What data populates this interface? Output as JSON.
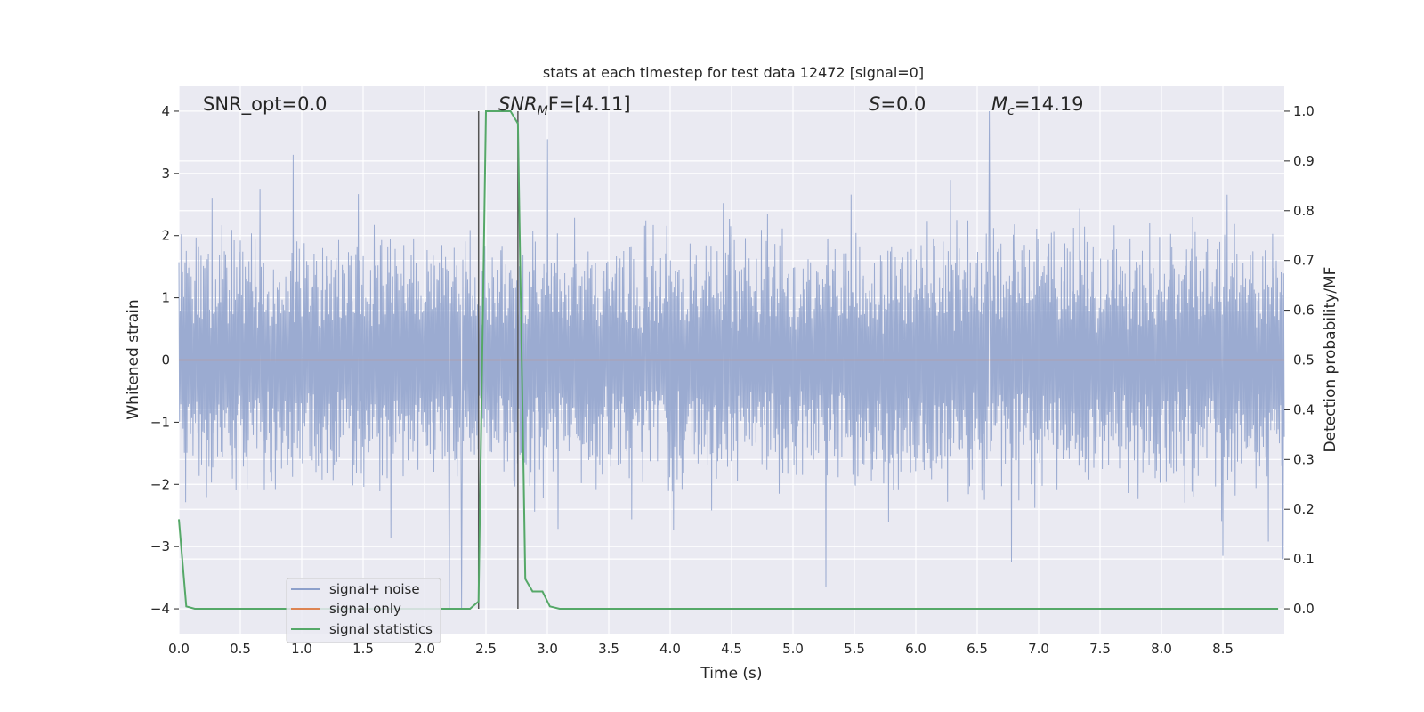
{
  "chart_data": {
    "type": "line",
    "title": "stats at each timestep for test data 12472 [signal=0]",
    "xlabel": "Time (s)",
    "ylabel_left": "Whitened strain",
    "ylabel_right": "Detection probability/MF",
    "xlim": [
      0.0,
      9.0
    ],
    "ylim_left": [
      -4.4,
      4.4
    ],
    "ylim_right": [
      -0.05,
      1.05
    ],
    "x_ticks": [
      0.0,
      0.5,
      1.0,
      1.5,
      2.0,
      2.5,
      3.0,
      3.5,
      4.0,
      4.5,
      5.0,
      5.5,
      6.0,
      6.5,
      7.0,
      7.5,
      8.0,
      8.5
    ],
    "x_tick_labels": [
      "0.0",
      "0.5",
      "1.0",
      "1.5",
      "2.0",
      "2.5",
      "3.0",
      "3.5",
      "4.0",
      "4.5",
      "5.0",
      "5.5",
      "6.0",
      "6.5",
      "7.0",
      "7.5",
      "8.0",
      "8.5"
    ],
    "y_left_ticks": [
      -4,
      -3,
      -2,
      -1,
      0,
      1,
      2,
      3,
      4
    ],
    "y_left_tick_labels": [
      "−4",
      "−3",
      "−2",
      "−1",
      "0",
      "1",
      "2",
      "3",
      "4"
    ],
    "y_right_ticks": [
      0.0,
      0.1,
      0.2,
      0.3,
      0.4,
      0.5,
      0.6,
      0.7,
      0.8,
      0.9,
      1.0
    ],
    "y_right_tick_labels": [
      "0.0",
      "0.1",
      "0.2",
      "0.3",
      "0.4",
      "0.5",
      "0.6",
      "0.7",
      "0.8",
      "0.9",
      "1.0"
    ],
    "grid": true,
    "legend_position": "lower-left",
    "annotations": {
      "snr_opt": "SNR_opt=0.0",
      "snr_mf_main": "SNR",
      "snr_mf_sub": "M",
      "snr_mf_rest": "F=[4.11]",
      "s_main": "S",
      "s_rest": "=0.0",
      "mc_main": "M",
      "mc_sub": "c",
      "mc_rest": "=14.19"
    },
    "vertical_markers": [
      2.44,
      2.76
    ],
    "series": [
      {
        "name": "signal+ noise",
        "color": "#8da0cb",
        "axis": "left",
        "summary": {
          "typical_upper": 1.7,
          "typical_lower": -1.7,
          "extremes": [
            [
              0.93,
              3.3
            ],
            [
              2.2,
              -4.0
            ],
            [
              2.3,
              -4.0
            ],
            [
              3.0,
              3.55
            ],
            [
              5.27,
              -3.65
            ],
            [
              6.6,
              4.0
            ],
            [
              6.78,
              -3.25
            ],
            [
              8.5,
              -3.15
            ]
          ]
        }
      },
      {
        "name": "signal only",
        "color": "#dd8452",
        "axis": "left",
        "x": [
          0.0,
          9.0
        ],
        "y": [
          0.0,
          0.0
        ]
      },
      {
        "name": "signal statistics",
        "color": "#55a868",
        "axis": "right",
        "x": [
          0.0,
          0.06,
          0.13,
          2.37,
          2.44,
          2.5,
          2.6,
          2.7,
          2.76,
          2.82,
          2.88,
          2.96,
          3.02,
          3.1,
          8.95
        ],
        "y": [
          0.18,
          0.005,
          0.0,
          0.0,
          0.015,
          1.0,
          1.0,
          1.0,
          0.975,
          0.06,
          0.035,
          0.035,
          0.005,
          0.0,
          0.0
        ]
      }
    ]
  }
}
